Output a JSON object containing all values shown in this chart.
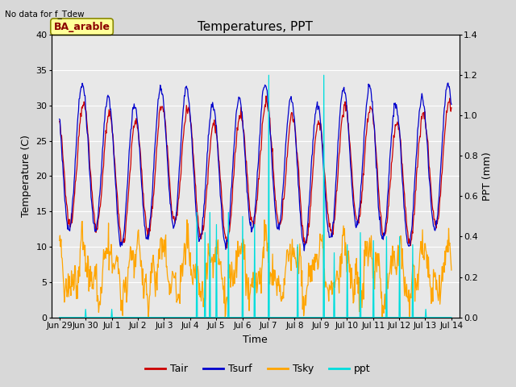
{
  "title": "Temperatures, PPT",
  "no_data_text": "No data for f_Tdew",
  "annotation_text": "BA_arable",
  "xlabel": "Time",
  "ylabel_left": "Temperature (C)",
  "ylabel_right": "PPT (mm)",
  "ylim_left": [
    0,
    40
  ],
  "ylim_right": [
    0.0,
    1.4
  ],
  "yticks_left": [
    0,
    5,
    10,
    15,
    20,
    25,
    30,
    35,
    40
  ],
  "yticks_right": [
    0.0,
    0.2,
    0.4,
    0.6,
    0.8,
    1.0,
    1.2,
    1.4
  ],
  "color_tair": "#cc0000",
  "color_tsurf": "#0000cc",
  "color_tsky": "#ffa500",
  "color_ppt": "#00dddd",
  "bg_color": "#d8d8d8",
  "plot_bg_color": "#e8e8e8",
  "annotation_facecolor": "#ffff99",
  "annotation_edgecolor": "#888800",
  "xticklabels": [
    "Jun 29",
    "Jun 30",
    "Jul 1",
    "Jul 2",
    "Jul 3",
    "Jul 4",
    "Jul 5",
    "Jul 6",
    "Jul 7",
    "Jul 8",
    "Jul 9",
    "Jul 10",
    "Jul 11",
    "Jul 12",
    "Jul 13",
    "Jul 14"
  ]
}
